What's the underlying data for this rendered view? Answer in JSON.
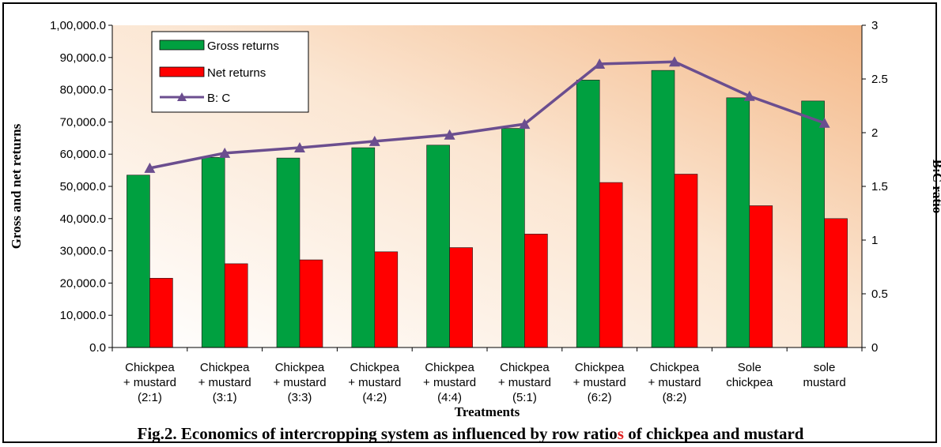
{
  "chart_data": {
    "type": "bar",
    "categories": [
      [
        "Chickpea",
        "+ mustard",
        "(2:1)"
      ],
      [
        "Chickpea",
        "+ mustard",
        "(3:1)"
      ],
      [
        "Chickpea",
        "+ mustard",
        "(3:3)"
      ],
      [
        "Chickpea",
        "+ mustard",
        "(4:2)"
      ],
      [
        "Chickpea",
        "+ mustard",
        "(4:4)"
      ],
      [
        "Chickpea",
        "+ mustard",
        "(5:1)"
      ],
      [
        "Chickpea",
        "+ mustard",
        "(6:2)"
      ],
      [
        "Chickpea",
        "+ mustard",
        "(8:2)"
      ],
      [
        "Sole",
        "chickpea"
      ],
      [
        "sole",
        "mustard"
      ]
    ],
    "series": [
      {
        "name": "Gross returns",
        "type": "bar",
        "axis": "left",
        "color": "#00a040",
        "values": [
          53500,
          59000,
          58800,
          62000,
          62800,
          68000,
          83000,
          86000,
          77500,
          76500
        ]
      },
      {
        "name": "Net returns",
        "type": "bar",
        "axis": "left",
        "color": "#ff0000",
        "values": [
          21500,
          26000,
          27200,
          29700,
          31000,
          35200,
          51200,
          53800,
          44000,
          40000
        ]
      },
      {
        "name": "B: C",
        "type": "line",
        "axis": "right",
        "color": "#6b4e8f",
        "values": [
          1.67,
          1.81,
          1.86,
          1.92,
          1.98,
          2.08,
          2.64,
          2.66,
          2.34,
          2.09
        ]
      }
    ],
    "ylabel": "Gross and net returns",
    "y2label": "B:C ratio",
    "xlabel": "Treatments",
    "ylim": [
      0,
      100000
    ],
    "y2lim": [
      0,
      3
    ],
    "yticks": [
      "0.0",
      "10,000.0",
      "20,000.0",
      "30,000.0",
      "40,000.0",
      "50,000.0",
      "60,000.0",
      "70,000.0",
      "80,000.0",
      "90,000.0",
      "1,00,000.0"
    ],
    "y2ticks": [
      "0",
      "0.5",
      "1",
      "1.5",
      "2",
      "2.5",
      "3"
    ],
    "legend_position": "top-left",
    "grid": false
  },
  "caption": {
    "before": "Fig.2. Economics of intercropping system as influenced by row ratio",
    "highlight": "s",
    "after": " of chickpea and mustard"
  }
}
